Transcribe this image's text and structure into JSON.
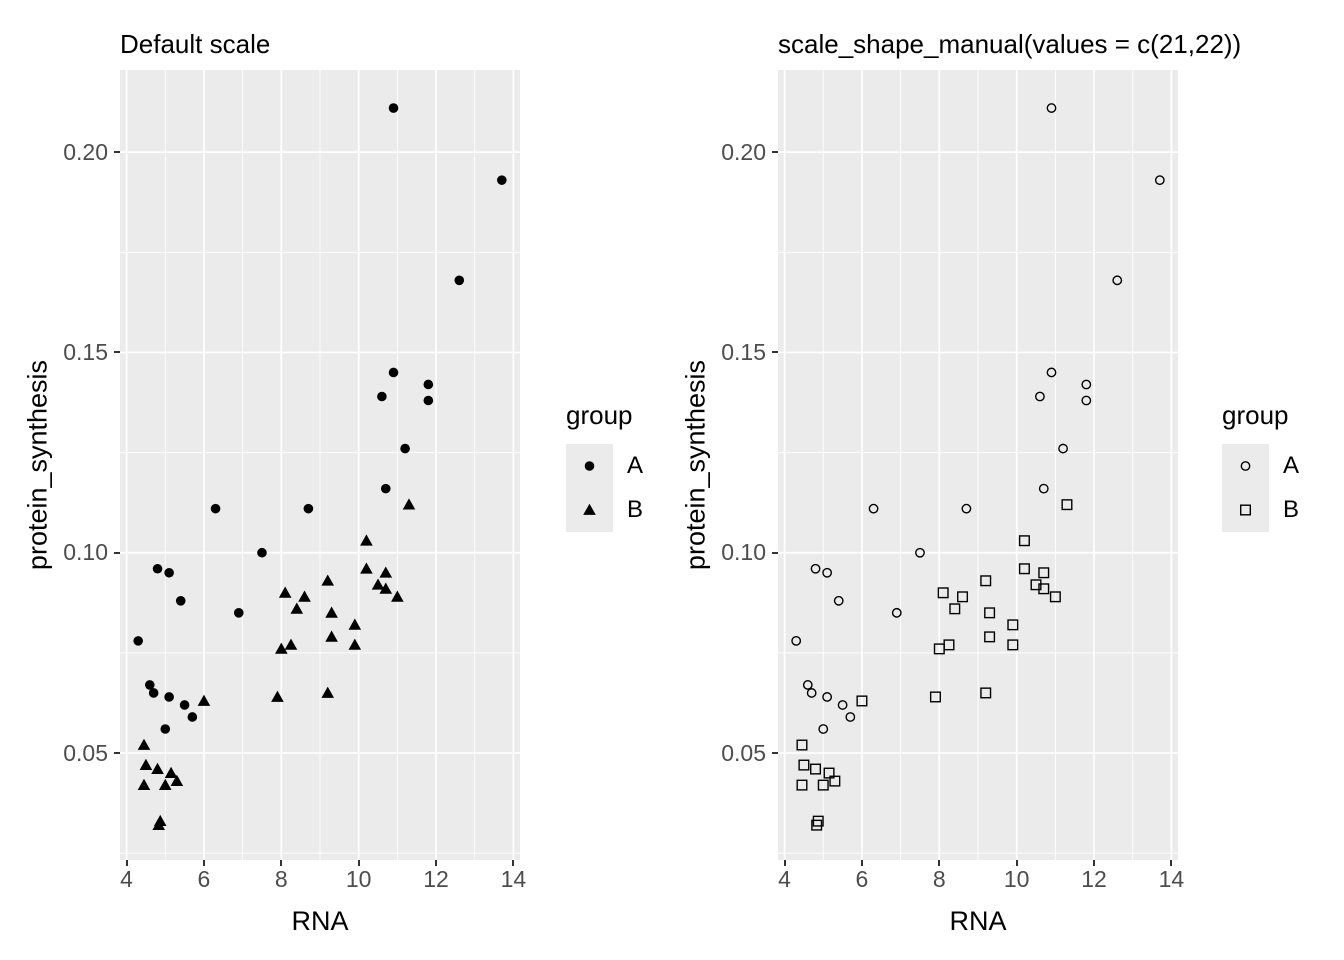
{
  "figure": {
    "background": "#FFFFFF",
    "panel_background": "#EBEBEB",
    "grid_color": "#FFFFFF",
    "tick_label_color": "#4D4D4D",
    "text_color": "#000000",
    "point_color": "#000000"
  },
  "legend": {
    "title": "group",
    "entries": [
      {
        "label": "A"
      },
      {
        "label": "B"
      }
    ]
  },
  "axes": {
    "x": {
      "label": "RNA",
      "tick_labels": [
        "4",
        "6",
        "8",
        "10",
        "12",
        "14"
      ],
      "tick_values": [
        4,
        6,
        8,
        10,
        12,
        14
      ],
      "minor": [
        5,
        7,
        9,
        11,
        13
      ],
      "domain": [
        3.83,
        14.17
      ]
    },
    "y": {
      "label": "protein_synthesis",
      "tick_labels": [
        "0.05",
        "0.10",
        "0.15",
        "0.20"
      ],
      "tick_values": [
        0.05,
        0.1,
        0.15,
        0.2
      ],
      "minor": [
        0.025,
        0.075,
        0.125,
        0.175
      ],
      "domain": [
        0.0233,
        0.2205
      ]
    }
  },
  "chart_data": [
    {
      "type": "scatter",
      "title": "Default scale",
      "xlabel": "RNA",
      "ylabel": "protein_synthesis",
      "xlim": [
        4,
        14
      ],
      "ylim": [
        0.03,
        0.215
      ],
      "grid": true,
      "legend_position": "right",
      "series": [
        {
          "name": "A",
          "shape": "filled-circle",
          "points": [
            [
              10.9,
              0.211
            ],
            [
              13.7,
              0.193
            ],
            [
              12.6,
              0.168
            ],
            [
              10.9,
              0.145
            ],
            [
              11.8,
              0.142
            ],
            [
              10.6,
              0.139
            ],
            [
              11.8,
              0.138
            ],
            [
              11.2,
              0.126
            ],
            [
              10.7,
              0.116
            ],
            [
              6.3,
              0.111
            ],
            [
              8.7,
              0.111
            ],
            [
              7.5,
              0.1
            ],
            [
              4.8,
              0.096
            ],
            [
              5.1,
              0.095
            ],
            [
              5.4,
              0.088
            ],
            [
              6.9,
              0.085
            ],
            [
              4.3,
              0.078
            ],
            [
              4.6,
              0.067
            ],
            [
              4.7,
              0.065
            ],
            [
              5.1,
              0.064
            ],
            [
              5.5,
              0.062
            ],
            [
              5.7,
              0.059
            ],
            [
              5.0,
              0.056
            ]
          ]
        },
        {
          "name": "B",
          "shape": "filled-triangle",
          "points": [
            [
              11.3,
              0.112
            ],
            [
              10.2,
              0.103
            ],
            [
              10.2,
              0.096
            ],
            [
              10.7,
              0.095
            ],
            [
              9.2,
              0.093
            ],
            [
              10.5,
              0.092
            ],
            [
              10.7,
              0.091
            ],
            [
              8.1,
              0.09
            ],
            [
              8.6,
              0.089
            ],
            [
              11.0,
              0.089
            ],
            [
              8.4,
              0.086
            ],
            [
              9.3,
              0.085
            ],
            [
              9.9,
              0.082
            ],
            [
              9.3,
              0.079
            ],
            [
              8.25,
              0.077
            ],
            [
              9.9,
              0.077
            ],
            [
              8.0,
              0.076
            ],
            [
              9.2,
              0.065
            ],
            [
              7.9,
              0.064
            ],
            [
              6.0,
              0.063
            ],
            [
              4.45,
              0.052
            ],
            [
              4.5,
              0.047
            ],
            [
              4.8,
              0.046
            ],
            [
              5.15,
              0.045
            ],
            [
              5.3,
              0.043
            ],
            [
              5.0,
              0.042
            ],
            [
              4.45,
              0.042
            ],
            [
              4.83,
              0.032
            ],
            [
              4.87,
              0.033
            ]
          ]
        }
      ]
    },
    {
      "type": "scatter",
      "title": "scale_shape_manual(values = c(21,22))",
      "xlabel": "RNA",
      "ylabel": "protein_synthesis",
      "xlim": [
        4,
        14
      ],
      "ylim": [
        0.03,
        0.215
      ],
      "grid": true,
      "legend_position": "right",
      "series": [
        {
          "name": "A",
          "shape": "open-circle",
          "points": [
            [
              10.9,
              0.211
            ],
            [
              13.7,
              0.193
            ],
            [
              12.6,
              0.168
            ],
            [
              10.9,
              0.145
            ],
            [
              11.8,
              0.142
            ],
            [
              10.6,
              0.139
            ],
            [
              11.8,
              0.138
            ],
            [
              11.2,
              0.126
            ],
            [
              10.7,
              0.116
            ],
            [
              6.3,
              0.111
            ],
            [
              8.7,
              0.111
            ],
            [
              7.5,
              0.1
            ],
            [
              4.8,
              0.096
            ],
            [
              5.1,
              0.095
            ],
            [
              5.4,
              0.088
            ],
            [
              6.9,
              0.085
            ],
            [
              4.3,
              0.078
            ],
            [
              4.6,
              0.067
            ],
            [
              4.7,
              0.065
            ],
            [
              5.1,
              0.064
            ],
            [
              5.5,
              0.062
            ],
            [
              5.7,
              0.059
            ],
            [
              5.0,
              0.056
            ]
          ]
        },
        {
          "name": "B",
          "shape": "open-square",
          "points": [
            [
              11.3,
              0.112
            ],
            [
              10.2,
              0.103
            ],
            [
              10.2,
              0.096
            ],
            [
              10.7,
              0.095
            ],
            [
              9.2,
              0.093
            ],
            [
              10.5,
              0.092
            ],
            [
              10.7,
              0.091
            ],
            [
              8.1,
              0.09
            ],
            [
              8.6,
              0.089
            ],
            [
              11.0,
              0.089
            ],
            [
              8.4,
              0.086
            ],
            [
              9.3,
              0.085
            ],
            [
              9.9,
              0.082
            ],
            [
              9.3,
              0.079
            ],
            [
              8.25,
              0.077
            ],
            [
              9.9,
              0.077
            ],
            [
              8.0,
              0.076
            ],
            [
              9.2,
              0.065
            ],
            [
              7.9,
              0.064
            ],
            [
              6.0,
              0.063
            ],
            [
              4.45,
              0.052
            ],
            [
              4.5,
              0.047
            ],
            [
              4.8,
              0.046
            ],
            [
              5.15,
              0.045
            ],
            [
              5.3,
              0.043
            ],
            [
              5.0,
              0.042
            ],
            [
              4.45,
              0.042
            ],
            [
              4.83,
              0.032
            ],
            [
              4.87,
              0.033
            ]
          ]
        }
      ]
    }
  ]
}
